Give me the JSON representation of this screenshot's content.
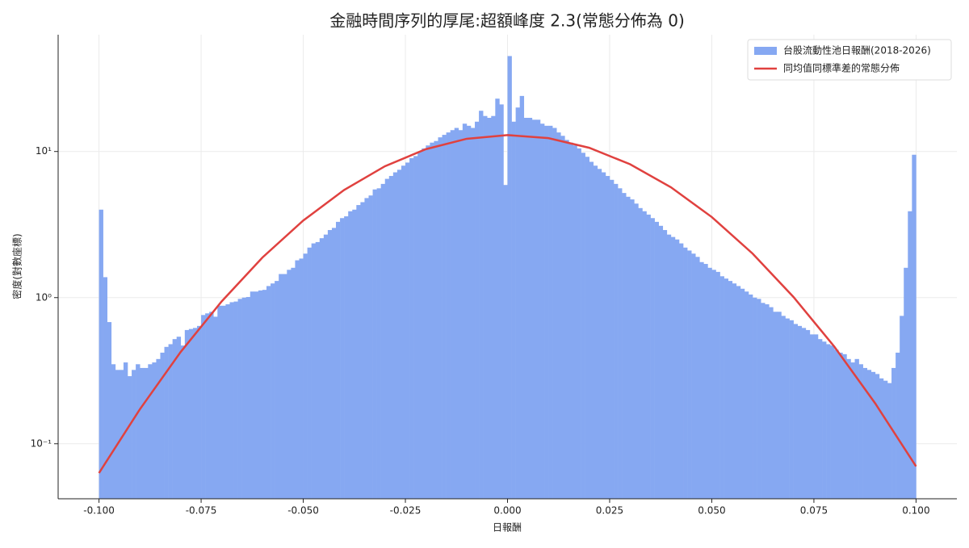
{
  "chart_data": {
    "type": "histogram",
    "title": "金融時間序列的厚尾:超額峰度 2.3(常態分佈為 0)",
    "xlabel": "日報酬",
    "ylabel": "密度(對數座標)",
    "bins": [
      -0.1,
      -0.099,
      -0.098,
      -0.097,
      -0.096,
      -0.095,
      -0.094,
      -0.093,
      -0.092,
      -0.091,
      -0.09,
      -0.089,
      -0.088,
      -0.087,
      -0.086,
      -0.085,
      -0.084,
      -0.083,
      -0.082,
      -0.081,
      -0.08,
      -0.079,
      -0.078,
      -0.077,
      -0.076,
      -0.075,
      -0.074,
      -0.073,
      -0.072,
      -0.071,
      -0.07,
      -0.069,
      -0.068,
      -0.067,
      -0.066,
      -0.065,
      -0.064,
      -0.063,
      -0.062,
      -0.061,
      -0.06,
      -0.059,
      -0.058,
      -0.057,
      -0.056,
      -0.055,
      -0.054,
      -0.053,
      -0.052,
      -0.051,
      -0.05,
      -0.049,
      -0.048,
      -0.047,
      -0.046,
      -0.045,
      -0.044,
      -0.043,
      -0.042,
      -0.041,
      -0.04,
      -0.039,
      -0.038,
      -0.037,
      -0.036,
      -0.035,
      -0.034,
      -0.033,
      -0.032,
      -0.031,
      -0.03,
      -0.029,
      -0.028,
      -0.027,
      -0.026,
      -0.025,
      -0.024,
      -0.023,
      -0.022,
      -0.021,
      -0.02,
      -0.019,
      -0.018,
      -0.017,
      -0.016,
      -0.015,
      -0.014,
      -0.013,
      -0.012,
      -0.011,
      -0.01,
      -0.009,
      -0.008,
      -0.007,
      -0.006,
      -0.005,
      -0.004,
      -0.003,
      -0.002,
      -0.001,
      0,
      0.001,
      0.002,
      0.003,
      0.004,
      0.005,
      0.006,
      0.007,
      0.008,
      0.009,
      0.01,
      0.011,
      0.012,
      0.013,
      0.014,
      0.015,
      0.016,
      0.017,
      0.018,
      0.019,
      0.02,
      0.021,
      0.022,
      0.023,
      0.024,
      0.025,
      0.026,
      0.027,
      0.028,
      0.029,
      0.03,
      0.031,
      0.032,
      0.033,
      0.034,
      0.035,
      0.036,
      0.037,
      0.038,
      0.039,
      0.04,
      0.041,
      0.042,
      0.043,
      0.044,
      0.045,
      0.046,
      0.047,
      0.048,
      0.049,
      0.05,
      0.051,
      0.052,
      0.053,
      0.054,
      0.055,
      0.056,
      0.057,
      0.058,
      0.059,
      0.06,
      0.061,
      0.062,
      0.063,
      0.064,
      0.065,
      0.066,
      0.067,
      0.068,
      0.069,
      0.07,
      0.071,
      0.072,
      0.073,
      0.074,
      0.075,
      0.076,
      0.077,
      0.078,
      0.079,
      0.08,
      0.081,
      0.082,
      0.083,
      0.084,
      0.085,
      0.086,
      0.087,
      0.088,
      0.089,
      0.09,
      0.091,
      0.092,
      0.093,
      0.094,
      0.095,
      0.096,
      0.097,
      0.098,
      0.099,
      0.1
    ],
    "series": [
      {
        "name": "台股流動性池日報酬(2018-2026)",
        "color": "#86a8f2",
        "values": [
          4.0,
          1.38,
          0.68,
          0.35,
          0.32,
          0.32,
          0.36,
          0.29,
          0.32,
          0.35,
          0.33,
          0.33,
          0.35,
          0.36,
          0.38,
          0.42,
          0.46,
          0.48,
          0.52,
          0.54,
          0.47,
          0.6,
          0.61,
          0.62,
          0.64,
          0.76,
          0.78,
          0.8,
          0.74,
          0.88,
          0.88,
          0.9,
          0.93,
          0.94,
          0.98,
          1.0,
          1.01,
          1.1,
          1.1,
          1.12,
          1.13,
          1.2,
          1.25,
          1.3,
          1.45,
          1.45,
          1.55,
          1.6,
          1.8,
          1.85,
          2.0,
          2.2,
          2.35,
          2.4,
          2.55,
          2.7,
          2.9,
          3.0,
          3.3,
          3.5,
          3.6,
          3.9,
          4.0,
          4.3,
          4.5,
          4.8,
          5.0,
          5.5,
          5.6,
          6.0,
          6.5,
          6.8,
          7.2,
          7.5,
          8.0,
          8.4,
          9.0,
          9.3,
          10.0,
          10.5,
          11.0,
          11.5,
          11.8,
          12.5,
          13.0,
          13.5,
          14.0,
          14.5,
          14.0,
          15.5,
          15.0,
          14.5,
          16.0,
          19.0,
          17.5,
          17.0,
          17.5,
          23,
          21,
          5.9,
          45,
          16,
          20,
          24,
          17,
          17,
          16.5,
          16.5,
          15.5,
          15.0,
          15.0,
          14.5,
          13.5,
          12.8,
          12.0,
          11.5,
          11.0,
          10.5,
          9.8,
          9.2,
          8.5,
          8.0,
          7.6,
          7.2,
          6.8,
          6.4,
          6.0,
          5.6,
          5.2,
          4.9,
          4.7,
          4.4,
          4.1,
          3.9,
          3.7,
          3.5,
          3.3,
          3.1,
          2.9,
          2.7,
          2.6,
          2.5,
          2.35,
          2.2,
          2.1,
          2.0,
          1.9,
          1.75,
          1.7,
          1.6,
          1.55,
          1.5,
          1.4,
          1.35,
          1.3,
          1.25,
          1.2,
          1.15,
          1.1,
          1.05,
          1.0,
          0.98,
          0.92,
          0.9,
          0.86,
          0.8,
          0.8,
          0.75,
          0.72,
          0.7,
          0.66,
          0.64,
          0.62,
          0.6,
          0.56,
          0.56,
          0.52,
          0.5,
          0.48,
          0.47,
          0.44,
          0.42,
          0.41,
          0.38,
          0.36,
          0.38,
          0.35,
          0.33,
          0.32,
          0.31,
          0.3,
          0.28,
          0.27,
          0.26,
          0.33,
          0.42,
          0.75,
          1.6,
          3.9,
          9.5
        ]
      },
      {
        "name": "同均值同標準差的常態分佈",
        "type": "line",
        "color": "#e0413f",
        "x": [
          -0.1,
          -0.09,
          -0.08,
          -0.07,
          -0.06,
          -0.05,
          -0.04,
          -0.03,
          -0.02,
          -0.01,
          0,
          0.01,
          0.02,
          0.03,
          0.04,
          0.05,
          0.06,
          0.07,
          0.08,
          0.09,
          0.1
        ],
        "values": [
          0.063,
          0.172,
          0.425,
          0.94,
          1.88,
          3.37,
          5.45,
          7.93,
          10.37,
          12.22,
          12.95,
          12.35,
          10.6,
          8.18,
          5.69,
          3.56,
          2.0,
          1.01,
          0.462,
          0.189,
          0.07
        ]
      }
    ],
    "xlim": [
      -0.11,
      0.11
    ],
    "ylim": [
      0.042,
      63
    ],
    "log_y": true,
    "grid": true,
    "legend": "upper right",
    "xticks": [
      {
        "value": -0.1,
        "label": "-0.100"
      },
      {
        "value": -0.075,
        "label": "-0.075"
      },
      {
        "value": -0.05,
        "label": "-0.050"
      },
      {
        "value": -0.025,
        "label": "-0.025"
      },
      {
        "value": 0,
        "label": "0.000"
      },
      {
        "value": 0.025,
        "label": "0.025"
      },
      {
        "value": 0.05,
        "label": "0.050"
      },
      {
        "value": 0.075,
        "label": "0.075"
      },
      {
        "value": 0.1,
        "label": "0.100"
      }
    ],
    "yticks": [
      {
        "value": 0.1,
        "label": "10⁻¹"
      },
      {
        "value": 1,
        "label": "10⁰"
      },
      {
        "value": 10,
        "label": "10¹"
      }
    ]
  }
}
